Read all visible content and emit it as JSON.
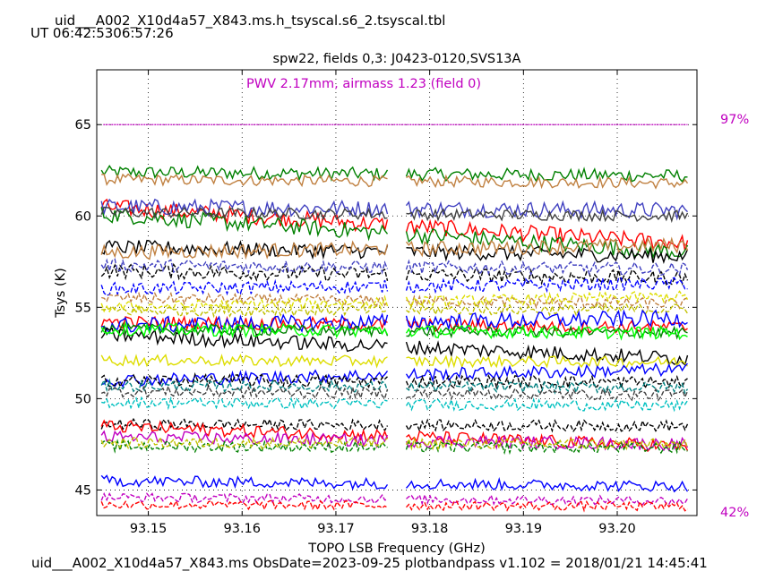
{
  "header": {
    "filename": "uid___A002_X10d4a57_X843.ms.h_tsyscal.s6_2.tsyscal.tbl",
    "ut_time": "UT 06:42:5306:57:26"
  },
  "footer": {
    "info": "uid___A002_X10d4a57_X843.ms  ObsDate=2023-09-25   plotbandpass v1.102 = 2018/01/21 14:45:41"
  },
  "chart_data": {
    "type": "line",
    "title": "spw22,  fields 0,3: J0423-0120,SVS13A",
    "annotation": "PWV 2.17mm, airmass 1.23 (field 0)",
    "xlabel": "TOPO LSB Frequency (GHz)",
    "ylabel": "Tsys (K)",
    "xlim": [
      93.1445,
      93.2085
    ],
    "ylim": [
      43.6,
      68.0
    ],
    "x_ticks": [
      "93.15",
      "93.16",
      "93.17",
      "93.18",
      "93.19",
      "93.20"
    ],
    "y_ticks": [
      "45",
      "50",
      "55",
      "60",
      "65"
    ],
    "grid": true,
    "transmission_line": {
      "value": 65.0,
      "color": "#c000c0",
      "label_top": "97%",
      "label_bottom": "42%"
    },
    "gap": [
      93.1755,
      93.1775
    ],
    "series": [
      {
        "color": "#008000",
        "style": "solid",
        "start": 62.4,
        "end": 62.2,
        "noise": 0.35
      },
      {
        "color": "#c08040",
        "style": "solid",
        "start": 62.0,
        "end": 61.8,
        "noise": 0.3
      },
      {
        "color": "#ff0000",
        "style": "solid",
        "start": 60.5,
        "end": 58.5,
        "noise": 0.45
      },
      {
        "color": "#4040c0",
        "style": "solid",
        "start": 60.5,
        "end": 60.3,
        "noise": 0.45
      },
      {
        "color": "#008000",
        "style": "solid",
        "start": 60.1,
        "end": 58.0,
        "noise": 0.45
      },
      {
        "color": "#404040",
        "style": "solid",
        "start": 60.2,
        "end": 60.0,
        "noise": 0.3
      },
      {
        "color": "#000000",
        "style": "solid",
        "start": 58.3,
        "end": 57.8,
        "noise": 0.4
      },
      {
        "color": "#c08040",
        "style": "solid",
        "start": 58.0,
        "end": 58.4,
        "noise": 0.4
      },
      {
        "color": "#000000",
        "style": "dashed",
        "start": 57.0,
        "end": 56.6,
        "noise": 0.4
      },
      {
        "color": "#4040c0",
        "style": "dashed",
        "start": 57.3,
        "end": 57.1,
        "noise": 0.35
      },
      {
        "color": "#0000ff",
        "style": "dashed",
        "start": 56.0,
        "end": 56.3,
        "noise": 0.35
      },
      {
        "color": "#c08040",
        "style": "dashed",
        "start": 55.5,
        "end": 55.2,
        "noise": 0.3
      },
      {
        "color": "#dddd00",
        "style": "dashed",
        "start": 55.0,
        "end": 55.6,
        "noise": 0.3
      },
      {
        "color": "#c0c000",
        "style": "dashed",
        "start": 54.8,
        "end": 54.9,
        "noise": 0.3
      },
      {
        "color": "#ff0000",
        "style": "solid",
        "start": 54.2,
        "end": 53.9,
        "noise": 0.35
      },
      {
        "color": "#0000ff",
        "style": "solid",
        "start": 54.0,
        "end": 54.4,
        "noise": 0.45
      },
      {
        "color": "#008000",
        "style": "solid",
        "start": 53.8,
        "end": 53.6,
        "noise": 0.3
      },
      {
        "color": "#000000",
        "style": "solid",
        "start": 53.5,
        "end": 52.2,
        "noise": 0.4
      },
      {
        "color": "#00ff00",
        "style": "solid",
        "start": 53.8,
        "end": 53.6,
        "noise": 0.35
      },
      {
        "color": "#dddd00",
        "style": "solid",
        "start": 52.1,
        "end": 52.0,
        "noise": 0.3
      },
      {
        "color": "#0000ff",
        "style": "solid",
        "start": 51.0,
        "end": 51.6,
        "noise": 0.35
      },
      {
        "color": "#000000",
        "style": "dashed",
        "start": 51.0,
        "end": 50.9,
        "noise": 0.35
      },
      {
        "color": "#008080",
        "style": "dashed",
        "start": 50.7,
        "end": 50.6,
        "noise": 0.3
      },
      {
        "color": "#404040",
        "style": "dashed",
        "start": 50.4,
        "end": 50.2,
        "noise": 0.3
      },
      {
        "color": "#00c0c0",
        "style": "dashed",
        "start": 49.8,
        "end": 49.6,
        "noise": 0.3
      },
      {
        "color": "#000000",
        "style": "dashed",
        "start": 48.6,
        "end": 48.5,
        "noise": 0.3
      },
      {
        "color": "#ff0000",
        "style": "solid",
        "start": 48.5,
        "end": 47.4,
        "noise": 0.35
      },
      {
        "color": "#c000c0",
        "style": "solid",
        "start": 47.9,
        "end": 47.5,
        "noise": 0.35
      },
      {
        "color": "#008000",
        "style": "dashed",
        "start": 47.4,
        "end": 47.3,
        "noise": 0.3
      },
      {
        "color": "#c0c000",
        "style": "dashed",
        "start": 47.6,
        "end": 47.5,
        "noise": 0.3
      },
      {
        "color": "#0000ff",
        "style": "solid",
        "start": 45.5,
        "end": 45.2,
        "noise": 0.3
      },
      {
        "color": "#c000c0",
        "style": "dashed",
        "start": 44.6,
        "end": 44.4,
        "noise": 0.25
      },
      {
        "color": "#ff0000",
        "style": "dashed",
        "start": 44.2,
        "end": 44.1,
        "noise": 0.25
      }
    ]
  }
}
